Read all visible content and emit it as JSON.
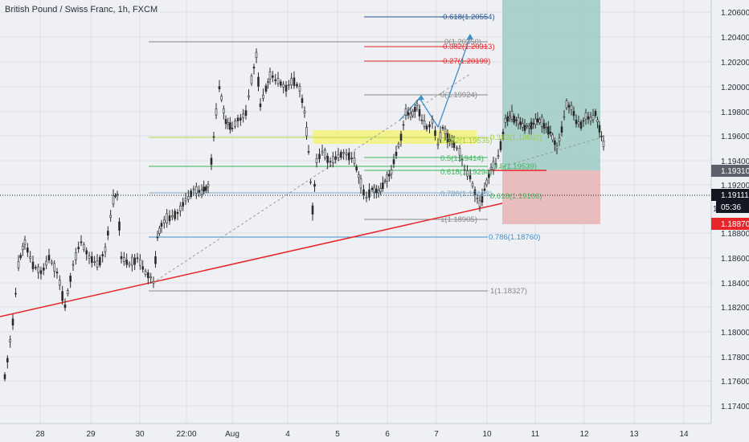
{
  "header": {
    "symbol_title": "British Pound / Swiss Franc, 1h, FXCM"
  },
  "colors": {
    "background": "#eef0f4",
    "up_candle": "#e9ecf2",
    "down_candle": "#2b2b2b",
    "wick": "#2b2b2b",
    "grid": "#dde1e8",
    "trendline": "#e8262a",
    "target_zone": "#a6cfc9",
    "stop_zone": "#e8b7b8",
    "resistance_box": "#f3f27a",
    "price_tag": "#131722",
    "current_tag": "#5d606b",
    "stop_tag": "#e8262a"
  },
  "price_axis": {
    "ticks": [
      "1.20600",
      "1.20400",
      "1.20200",
      "1.20000",
      "1.19800",
      "1.19600",
      "1.19400",
      "1.19200",
      "1.18800",
      "1.18600",
      "1.18400",
      "1.18200",
      "1.18000",
      "1.17800",
      "1.17600",
      "1.17400"
    ],
    "tags": {
      "last_price": "1.19111",
      "countdown": "05:36",
      "entry_price": "1.19310",
      "stop_price": "1.18870",
      "partial": "1"
    }
  },
  "time_axis": {
    "ticks": [
      "28",
      "29",
      "30",
      "22:00",
      "Aug",
      "4",
      "5",
      "6",
      "7",
      "10",
      "11",
      "12",
      "13",
      "14"
    ]
  },
  "fib_labels": [
    {
      "text": "-0.618(1.20554)",
      "color": "#2b5592"
    },
    {
      "text": "0(1.20350)",
      "color": "#888888"
    },
    {
      "text": "-0.382(1.20313)",
      "color": "#e8262a"
    },
    {
      "text": "-0.27(1.20199)",
      "color": "#e8262a"
    },
    {
      "text": "0(1.19924)",
      "color": "#888888"
    },
    {
      "text": "0.382(1.19535)",
      "color": "#9ccd3c"
    },
    {
      "text": "0.5(1.19414)",
      "color": "#3cb35a"
    },
    {
      "text": "0.618(1.19294)",
      "color": "#3cb35a"
    },
    {
      "text": "0.786(1.19123)",
      "color": "#7fa8c9"
    },
    {
      "text": "1(1.18905)",
      "color": "#888888"
    },
    {
      "text": "0.786(1.18760)",
      "color": "#3f8fc9"
    },
    {
      "text": "1(1.18327)",
      "color": "#888888"
    },
    {
      "text": "0.382(1.19602)",
      "color": "#9ccd3c"
    },
    {
      "text": "0.5(1.19539)",
      "color": "#3cb35a"
    },
    {
      "text": "0.618(1.19106)",
      "color": "#3cb35a"
    }
  ]
}
